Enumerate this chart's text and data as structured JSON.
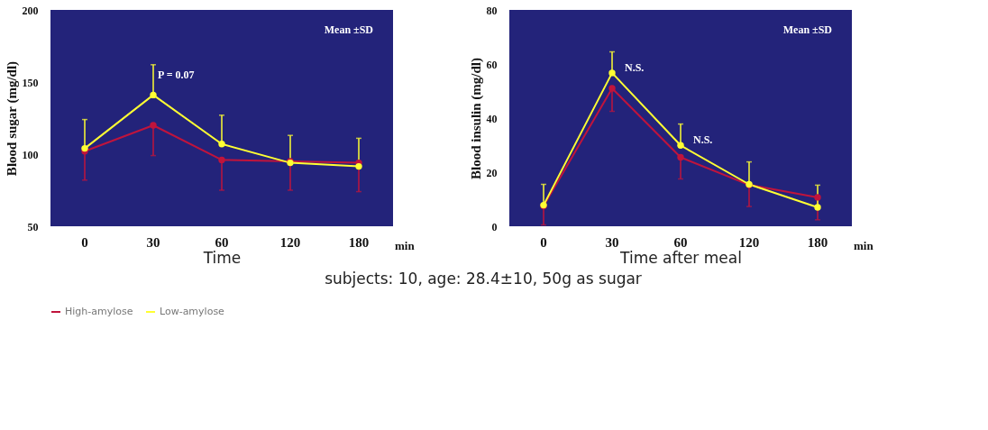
{
  "chart_data": [
    {
      "type": "line",
      "xlabel": "Time",
      "ylabel": "Blood sugar (mg/dl)",
      "categories": [
        "0",
        "30",
        "60",
        "120",
        "180"
      ],
      "ylim": [
        50,
        200
      ],
      "yticks": [
        50,
        100,
        150,
        200
      ],
      "legend": "bottom",
      "marker": "circle",
      "line_style": "solid",
      "series": [
        {
          "name": "High-amylose",
          "color": "#c0143c",
          "values": [
            102,
            120,
            96,
            95,
            94
          ],
          "errors": [
            [
              82,
              102
            ],
            [
              99,
              120
            ],
            [
              75,
              96
            ],
            [
              75,
              95
            ],
            [
              74,
              94
            ]
          ]
        },
        {
          "name": "Low-amylose",
          "color": "#ffff33",
          "values": [
            104,
            141,
            107,
            94,
            91.5
          ],
          "errors": [
            [
              104,
              124
            ],
            [
              141,
              162
            ],
            [
              107,
              127
            ],
            [
              94,
              113
            ],
            [
              91.5,
              111
            ]
          ]
        }
      ],
      "annotations": [
        "Mean ±SD",
        "min",
        "P = 0.07"
      ]
    },
    {
      "type": "line",
      "xlabel": "Time after meal",
      "ylabel": "Blood insulin (mg/dl)",
      "categories": [
        "0",
        "30",
        "60",
        "120",
        "180"
      ],
      "ylim": [
        0,
        80
      ],
      "yticks": [
        0,
        20,
        40,
        60,
        80
      ],
      "legend": "bottom",
      "marker": "circle",
      "line_style": "solid",
      "series": [
        {
          "name": "High-amylose",
          "color": "#c0143c",
          "values": [
            7.5,
            51,
            25.5,
            15.3,
            10.7
          ],
          "errors": [
            [
              0.5,
              7.5
            ],
            [
              42.5,
              51
            ],
            [
              17.5,
              25.5
            ],
            [
              7.3,
              15.3
            ],
            [
              2.4,
              10.7
            ]
          ]
        },
        {
          "name": "Low-amylose",
          "color": "#ffff33",
          "values": [
            7.8,
            56.7,
            29.9,
            15.5,
            7
          ],
          "errors": [
            [
              7.8,
              15.5
            ],
            [
              56.7,
              64.5
            ],
            [
              29.9,
              37.8
            ],
            [
              15.5,
              23.8
            ],
            [
              7,
              15.2
            ]
          ]
        }
      ],
      "annotations": [
        "Mean ±SD",
        "min",
        {
          "text": "N.S.",
          "x": "30",
          "y": 56.7
        },
        {
          "text": "N.S.",
          "x": "60",
          "y": 29.9
        },
        "subjects: 10, age: 28.4±10, 50g as sugar"
      ]
    }
  ]
}
